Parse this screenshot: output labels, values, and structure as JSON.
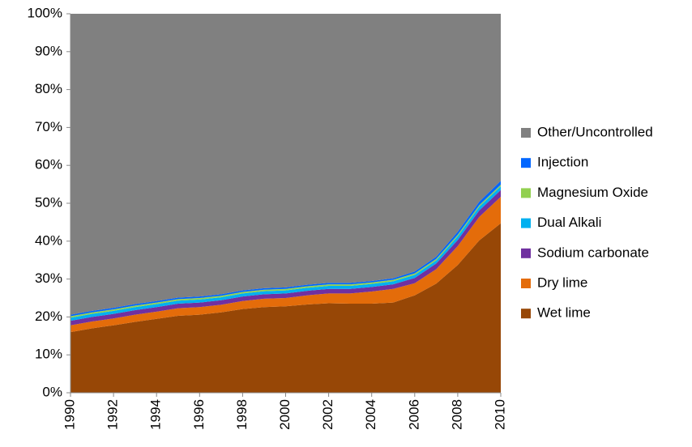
{
  "chart_data": {
    "type": "stacked-area",
    "x": [
      1990,
      1991,
      1992,
      1993,
      1994,
      1995,
      1996,
      1997,
      1998,
      1999,
      2000,
      2001,
      2002,
      2003,
      2004,
      2005,
      2006,
      2007,
      2008,
      2009,
      2010
    ],
    "xlim": [
      1990,
      2010
    ],
    "xticks": [
      1990,
      1992,
      1994,
      1996,
      1998,
      2000,
      2002,
      2004,
      2006,
      2008,
      2010
    ],
    "ylim": [
      0,
      100
    ],
    "yticks": [
      {
        "value": 0,
        "label": "0%"
      },
      {
        "value": 10,
        "label": "10%"
      },
      {
        "value": 20,
        "label": "20%"
      },
      {
        "value": 30,
        "label": "30%"
      },
      {
        "value": 40,
        "label": "40%"
      },
      {
        "value": 50,
        "label": "50%"
      },
      {
        "value": 60,
        "label": "60%"
      },
      {
        "value": 70,
        "label": "70%"
      },
      {
        "value": 80,
        "label": "80%"
      },
      {
        "value": 90,
        "label": "90%"
      },
      {
        "value": 100,
        "label": "100%"
      }
    ],
    "legend": "right",
    "series": [
      {
        "name": "Wet lime",
        "color": "#974706",
        "values": [
          16,
          17,
          17.8,
          18.7,
          19.5,
          20.3,
          20.6,
          21.2,
          22.1,
          22.6,
          22.8,
          23.3,
          23.6,
          23.5,
          23.5,
          23.8,
          25.7,
          28.8,
          33.7,
          40.2,
          44.7
        ]
      },
      {
        "name": "Dry lime",
        "color": "#e46c0a",
        "values": [
          1.8,
          1.8,
          1.8,
          1.9,
          1.9,
          2.0,
          2.0,
          2.0,
          2.1,
          2.2,
          2.2,
          2.4,
          2.6,
          2.7,
          3.2,
          3.6,
          3.2,
          3.8,
          5.0,
          6.2,
          7.0
        ]
      },
      {
        "name": "Sodium carbonate",
        "color": "#7030a0",
        "values": [
          1.2,
          1.2,
          1.2,
          1.2,
          1.2,
          1.2,
          1.2,
          1.2,
          1.2,
          1.2,
          1.2,
          1.2,
          1.2,
          1.2,
          1.2,
          1.2,
          1.4,
          1.5,
          1.6,
          1.7,
          1.8
        ]
      },
      {
        "name": "Dual Alkali",
        "color": "#00b0f0",
        "values": [
          0.8,
          0.8,
          0.8,
          0.8,
          0.8,
          0.8,
          0.8,
          0.8,
          0.8,
          0.8,
          0.8,
          0.8,
          0.8,
          0.8,
          0.8,
          0.8,
          0.8,
          0.8,
          1.0,
          1.0,
          1.0
        ]
      },
      {
        "name": "Magnesium Oxide",
        "color": "#92d050",
        "values": [
          0.4,
          0.4,
          0.4,
          0.4,
          0.4,
          0.4,
          0.4,
          0.4,
          0.4,
          0.4,
          0.4,
          0.4,
          0.4,
          0.4,
          0.4,
          0.4,
          0.4,
          0.4,
          0.4,
          0.4,
          0.4
        ]
      },
      {
        "name": "Injection",
        "color": "#0066ff",
        "values": [
          0.4,
          0.4,
          0.4,
          0.4,
          0.4,
          0.4,
          0.4,
          0.4,
          0.4,
          0.4,
          0.4,
          0.4,
          0.4,
          0.4,
          0.4,
          0.4,
          0.5,
          0.6,
          0.8,
          0.9,
          1.0
        ]
      },
      {
        "name": "Other/Uncontrolled",
        "color": "#808080",
        "values": [
          79.4,
          78.4,
          77.6,
          76.6,
          75.8,
          74.9,
          74.6,
          74,
          73,
          72.4,
          72.2,
          71.5,
          71,
          71,
          70.5,
          69.8,
          68,
          64.1,
          57.5,
          49.6,
          44.1
        ]
      }
    ]
  }
}
